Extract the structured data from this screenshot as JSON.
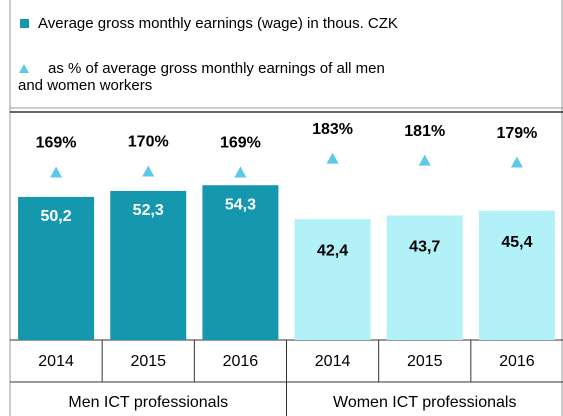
{
  "chart_data": {
    "type": "bar",
    "categories": [
      "2014",
      "2015",
      "2016",
      "2014",
      "2015",
      "2016"
    ],
    "groups": [
      "Men ICT professionals",
      "Women ICT professionals"
    ],
    "series": [
      {
        "name": "Average gross monthly earnings (wage) in thous. CZK",
        "color": "#1598ad",
        "colors": [
          "#1598ad",
          "#1598ad",
          "#1598ad",
          "#b3f1f8",
          "#b3f1f8",
          "#b3f1f8"
        ],
        "values": [
          50.2,
          52.3,
          54.3,
          42.4,
          43.7,
          45.4
        ],
        "value_labels": [
          "50,2",
          "52,3",
          "54,3",
          "42,4",
          "43,7",
          "45,4"
        ]
      },
      {
        "name": "as % of average gross monthly earnings of all men and women workers",
        "color": "#5cc9e6",
        "axis": "y2",
        "values": [
          169,
          170,
          169,
          183,
          181,
          179
        ],
        "value_labels": [
          "169%",
          "170%",
          "169%",
          "183%",
          "181%",
          "179%"
        ]
      }
    ],
    "ylim": [
      0,
      80
    ],
    "y2lim": [
      0,
      230
    ]
  }
}
